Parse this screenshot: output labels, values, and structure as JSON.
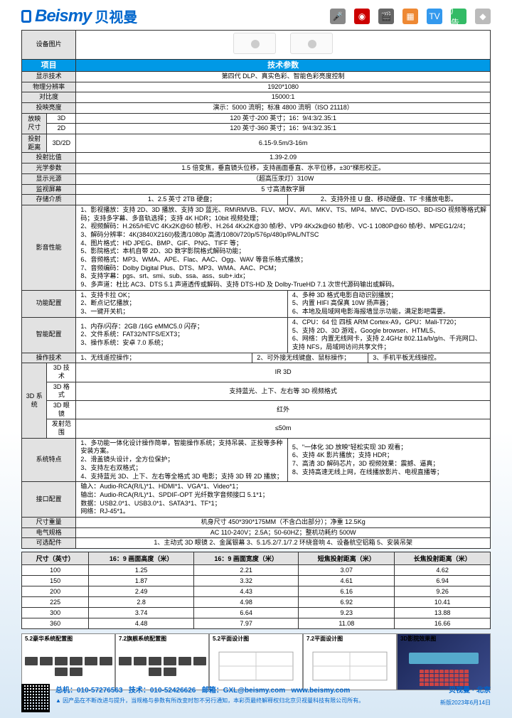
{
  "brand": {
    "en": "Beismy",
    "cn": "贝视曼"
  },
  "header_icons": [
    {
      "name": "mic",
      "glyph": "🎤",
      "bg": "#888"
    },
    {
      "name": "rec",
      "glyph": "◉",
      "bg": "#cc0000"
    },
    {
      "name": "movie",
      "glyph": "🎬",
      "bg": "#666"
    },
    {
      "name": "slides",
      "glyph": "▦",
      "bg": "#ee8833"
    },
    {
      "name": "tv",
      "glyph": "TV",
      "bg": "#3399ee"
    },
    {
      "name": "ad",
      "glyph": "广告",
      "bg": "#33bb66"
    },
    {
      "name": "app",
      "glyph": "◆",
      "bg": "#bbb"
    }
  ],
  "spec_header": {
    "pic": "设备图片",
    "item": "项目",
    "params": "技术参数"
  },
  "specs": {
    "display_tech": {
      "l": "显示技术",
      "v": "第四代 DLP、真实色彩、智能色彩亮度控制"
    },
    "resolution": {
      "l": "物理分辨率",
      "v": "1920*1080"
    },
    "contrast": {
      "l": "对比度",
      "v": "15000:1"
    },
    "brightness": {
      "l": "投映亮度",
      "v": "演示：5000 流明；标准 4800 流明（ISO 21118）"
    },
    "proj_size": {
      "l": "放映尺寸",
      "r3d": "3D",
      "v3d": "120 英寸-200 英寸；16：9/4:3/2.35:1",
      "r2d": "2D",
      "v2d": "120 英寸-360 英寸；16：9/4:3/2.35:1"
    },
    "throw_dist": {
      "l": "投射距离",
      "c": "3D/2D",
      "v": "6.15-9.5m/3-16m"
    },
    "throw_ratio": {
      "l": "投射比值",
      "v": "1.39-2.09"
    },
    "optics": {
      "l": "光学参数",
      "v": "1.5 倍变焦，垂直镜头位移，支持画面垂直、水平位移，±30°梯形校正。"
    },
    "light_src": {
      "l": "显示光源",
      "v": "（超高压汞灯）310W"
    },
    "monitor": {
      "l": "监视屏幕",
      "v": "5 寸高清数字屏"
    },
    "storage": {
      "l": "存储介质",
      "c1": "1、2.5 英寸 2TB 硬盘；",
      "c2": "2、支持外挂 U 盘、移动硬盘、TF 卡播放电影。"
    },
    "av_perf": {
      "l": "影音性能",
      "lines": [
        "1、影视播放：支持 2D、3D 播放、支持 3D 蓝光、RM\\RMVB、FLV、MOV、AVI、MKV、TS、MP4、MVC、DVD-ISO、BD-ISO 视频等格式解码；支持多字幕、多音轨选择；支持 4K HDR；10bit 视频处理；",
        "2、视频解码：H.265/HEVC 4Kx2K@60 帧/秒、H.264 4Kx2K@30 帧/秒、VP9 4Kx2k@60 帧/秒、VC-1 1080P@60 帧/秒、MPEG1/2/4；",
        "3、解码分辨率：4K(3840X2160)极清/1080p 高清/1080i/720p/576p/480p/PAL/NTSC",
        "4、图片格式：HD JPEG、BMP、GIF、PNG、TIFF 等；",
        "5、影院格式：本机自带 2D、3D 数字影院格式解码功能；",
        "6、音频格式：MP3、WMA、APE、Flac、AAC、Ogg、WAV 等音乐格式播放；",
        "7、音频编码：Dolby Digital Plus、DTS、MP3、WMA、AAC、PCM；",
        "8、支持字幕：pgs、srt、smi、sub、ssa、ass、sub+.idx；",
        "9、多声道：杜比 AC3、DTS 5.1 声道透传或解码、支持 DTS-HD 及 Dolby-TrueHD 7.1 次世代源码输出或解码。"
      ]
    },
    "func_cfg": {
      "l": "功能配置",
      "left": [
        "1、支持卡拉 OK；",
        "2、断点记忆播放；",
        "3、一键开关机；"
      ],
      "right": [
        "4、多种 3D 格式电影自动识别播放；",
        "5、内置 HIFI 高保真 10W 扬声器；",
        "6、本地及局域网电影海报墙显示功能，满足影吧需要。"
      ]
    },
    "smart_cfg": {
      "l": "智能配置",
      "left": [
        "1、内存/闪存：2GB /16G eMMC5.0 闪存；",
        "2、文件系统：FAT32/NTFS/EXT3；",
        "3、操作系统：安卓 7.0 系统；"
      ],
      "right": [
        "4、CPU：64 位 四核 ARM  Cortex-A9，GPU：Mali-T720；",
        "5、支持 2D、3D 游戏，Google browser、HTML5、",
        "6、网络：内置无线网卡，支持 2.4GHz 802.11a/b/g/n、千兆网口、支持 NFS，局域网访问共享文件；"
      ]
    },
    "op_tech": {
      "l": "操作技术",
      "c1": "1、无线遥控操作；",
      "c2": "2、可外接无线键盘、鼠标操作；",
      "c3": "3、手机平板无线操控。"
    },
    "sys3d": {
      "l": "3D 系统",
      "r1l": "3D 技术",
      "r1v": "IR 3D",
      "r2l": "3D 格式",
      "r2v": "支持蓝光、上下、左右等 3D 视频格式",
      "r3l": "3D 眼镜",
      "r3v": "红外",
      "r4l": "发射范围",
      "r4v": "≤50m"
    },
    "features": {
      "l": "系统特点",
      "left": [
        "1、多功能一体化设计操作简单，智能操作系统；支持吊装、正投等多种安装方案。",
        "2、滑盖镜头设计，全方位保护；",
        "3、支持左右双格式；",
        "4、支持蓝光 3D、上下、左右等全格式 3D 电影；支持 3D 转 2D 播放；"
      ],
      "right": [
        "5、\"一体化 3D 放映\"轻松实现 3D 观看；",
        "6、支持 4K 影片播放；支持 HDR；",
        "7、高清 3D 解码芯片，3D 视频效果：震撼、逼真；",
        "8、支持高速无线上网，在线播放影片、电视直播等；"
      ]
    },
    "io": {
      "l": "接口配置",
      "lines": [
        "输入：Audio-RCA(R/L)*1、HDMI*1、VGA*1、Video*1；",
        "输出：Audio-RCA(R/L)*1、SPDIF-OPT 光纤数字音频接口 5.1*1；",
        "数据：USB2.0*1、USB3.0*1、SATA3*1、TF*1；",
        "网络：RJ-45*1。"
      ]
    },
    "dim_wt": {
      "l": "尺寸重量",
      "v": "机身尺寸 450*390*175MM（不含凸出部分）；净重 12.5Kg"
    },
    "power": {
      "l": "电气规格",
      "v": "AC 110-240V；2.5A；50-60HZ；整机功耗约 500W"
    },
    "optional": {
      "l": "可选配件",
      "v": "1、主动式 3D 眼镜    2、金属银幕    3、5.1/5.2/7.1/7.2 环绕音响    4、设备航空铝箱    5、安装吊架"
    }
  },
  "size_headers": [
    "尺寸（英寸）",
    "16：9 画面高度（米）",
    "16：9 画面宽度（米）",
    "短焦投射距离（米）",
    "长焦投射距离（米）"
  ],
  "size_rows": [
    [
      "100",
      "1.25",
      "2.21",
      "3.07",
      "4.62"
    ],
    [
      "150",
      "1.87",
      "3.32",
      "4.61",
      "6.94"
    ],
    [
      "200",
      "2.49",
      "4.43",
      "6.16",
      "9.26"
    ],
    [
      "225",
      "2.8",
      "4.98",
      "6.92",
      "10.41"
    ],
    [
      "300",
      "3.74",
      "6.64",
      "9.23",
      "13.88"
    ],
    [
      "360",
      "4.48",
      "7.97",
      "11.08",
      "16.66"
    ]
  ],
  "thumbs": [
    "5.2豪华系统配置图",
    "7.2旗舰系统配置图",
    "5.2平面设计图",
    "7.2平面设计图",
    "3D影院效果图"
  ],
  "footer": {
    "hq": "总机：010-57276563",
    "tech": "技术：010-52426626",
    "email": "邮箱：GXL@beismy.com",
    "site": "www.beismy.com",
    "loc": "贝视曼 · 北京",
    "note": "▲ 因产品在不断改进与提升，当规格与参数有所改变时恕不另行通知，本彩页最终解释权归北京贝视曼科技有限公司所有。",
    "ver": "新版2023年6月14日"
  }
}
